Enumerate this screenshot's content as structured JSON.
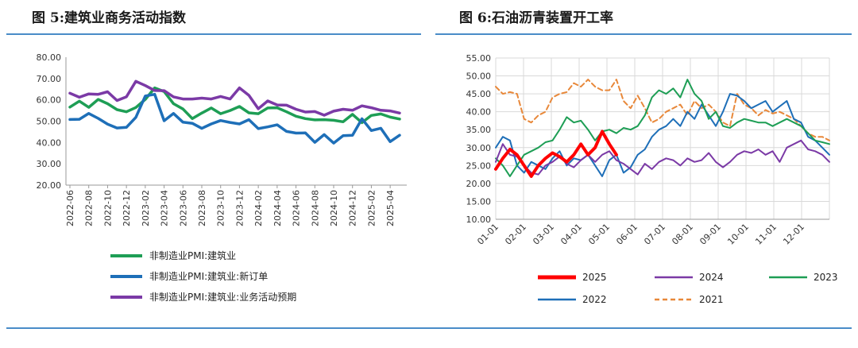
{
  "left_title": "图 5:建筑业商务活动指数",
  "right_title": "图 6:石油沥青装置开工率",
  "chart_data": [
    {
      "type": "line",
      "ylim": [
        20,
        80
      ],
      "yticks": [
        "20.00",
        "30.00",
        "40.00",
        "50.00",
        "60.00",
        "70.00",
        "80.00"
      ],
      "xticks": [
        "2022-06",
        "2022-08",
        "2022-10",
        "2022-12",
        "2023-02",
        "2023-04",
        "2023-06",
        "2023-08",
        "2023-10",
        "2023-12",
        "2024-02",
        "2024-04",
        "2024-06",
        "2024-08",
        "2024-10",
        "2024-12",
        "2025-02",
        "2025-04"
      ],
      "x": [
        "2022-06",
        "2022-07",
        "2022-08",
        "2022-09",
        "2022-10",
        "2022-11",
        "2022-12",
        "2023-01",
        "2023-02",
        "2023-03",
        "2023-04",
        "2023-05",
        "2023-06",
        "2023-07",
        "2023-08",
        "2023-09",
        "2023-10",
        "2023-11",
        "2023-12",
        "2024-01",
        "2024-02",
        "2024-03",
        "2024-04",
        "2024-05",
        "2024-06",
        "2024-07",
        "2024-08",
        "2024-09",
        "2024-10",
        "2024-11",
        "2024-12",
        "2025-01",
        "2025-02",
        "2025-03",
        "2025-04",
        "2025-05"
      ],
      "series": [
        {
          "name": "非制造业PMI:建筑业",
          "color": "#1e9e55",
          "values": [
            56.6,
            59.4,
            56.5,
            60.2,
            58.2,
            55.4,
            54.4,
            56.4,
            60.2,
            65.6,
            63.9,
            58.2,
            55.7,
            51.2,
            53.8,
            56.2,
            53.5,
            55.0,
            56.9,
            53.9,
            53.5,
            56.2,
            56.3,
            54.4,
            52.3,
            51.2,
            50.6,
            50.7,
            50.4,
            49.7,
            53.2,
            49.3,
            52.7,
            53.4,
            51.9,
            51.0
          ]
        },
        {
          "name": "非制造业PMI:建筑业:新订单",
          "color": "#1e6fb8",
          "values": [
            50.8,
            50.9,
            53.6,
            51.3,
            48.6,
            46.8,
            47.1,
            51.8,
            61.8,
            62.6,
            50.2,
            53.6,
            49.5,
            49.0,
            46.6,
            48.7,
            50.3,
            49.4,
            48.7,
            50.7,
            46.5,
            47.3,
            48.3,
            45.2,
            44.4,
            44.5,
            40.1,
            43.7,
            39.7,
            43.2,
            43.4,
            51.1,
            45.6,
            46.7,
            40.4,
            43.4
          ]
        },
        {
          "name": "非制造业PMI:建筑业:业务活动预期",
          "color": "#7b3aa6",
          "values": [
            63.1,
            61.2,
            62.8,
            62.6,
            63.8,
            59.7,
            61.4,
            68.7,
            66.7,
            64.4,
            64.3,
            61.4,
            60.4,
            60.4,
            60.8,
            60.4,
            61.6,
            60.4,
            65.6,
            62.1,
            55.8,
            59.5,
            57.6,
            57.5,
            55.6,
            54.3,
            54.5,
            52.8,
            54.7,
            55.6,
            55.1,
            57.2,
            56.3,
            55.1,
            54.8,
            53.8
          ]
        }
      ]
    },
    {
      "type": "line",
      "ylim": [
        10,
        55
      ],
      "yticks": [
        "10.00",
        "15.00",
        "20.00",
        "25.00",
        "30.00",
        "35.00",
        "40.00",
        "45.00",
        "50.00",
        "55.00"
      ],
      "xticks": [
        "01-01",
        "02-01",
        "03-01",
        "04-01",
        "05-01",
        "06-01",
        "07-01",
        "08-01",
        "09-01",
        "10-01",
        "11-01",
        "12-01"
      ],
      "series": [
        {
          "name": "2025",
          "color": "#ff0000",
          "width": 4,
          "dash": "",
          "values": [
            24.0,
            27.0,
            29.5,
            28.0,
            25.0,
            22.0,
            25.0,
            27.0,
            28.5,
            27.5,
            26.0,
            28.0,
            31.0,
            28.0,
            30.0,
            34.5,
            31.0,
            28.0
          ]
        },
        {
          "name": "2024",
          "color": "#7b3aa6",
          "width": 2,
          "dash": "",
          "values": [
            26.0,
            31.0,
            28.0,
            27.5,
            25.0,
            23.0,
            22.5,
            25.0,
            26.0,
            27.5,
            25.5,
            24.5,
            26.5,
            28.0,
            26.0,
            28.0,
            29.0,
            26.5,
            25.5,
            24.0,
            22.5,
            25.5,
            24.0,
            26.0,
            27.0,
            26.5,
            25.0,
            27.0,
            26.0,
            26.5,
            28.5,
            26.0,
            24.5,
            26.0,
            28.0,
            29.0,
            28.5,
            29.5,
            28.0,
            29.0,
            26.0,
            30.0,
            31.0,
            32.0,
            29.5,
            29.0,
            28.0,
            26.0
          ]
        },
        {
          "name": "2023",
          "color": "#1e9e55",
          "width": 2,
          "dash": "",
          "values": [
            27.0,
            25.0,
            22.0,
            25.0,
            28.0,
            29.0,
            30.0,
            31.5,
            32.0,
            35.0,
            38.5,
            37.0,
            37.5,
            35.0,
            32.0,
            34.5,
            35.0,
            34.0,
            35.5,
            35.0,
            36.0,
            39.0,
            44.0,
            46.0,
            45.0,
            46.5,
            44.0,
            49.0,
            45.0,
            43.0,
            38.0,
            40.0,
            36.0,
            35.5,
            37.0,
            38.0,
            37.5,
            37.0,
            37.0,
            36.0,
            37.0,
            38.0,
            37.0,
            36.0,
            34.0,
            32.0,
            31.5,
            31.0
          ]
        },
        {
          "name": "2022",
          "color": "#1e6fb8",
          "width": 2,
          "dash": "",
          "values": [
            30.0,
            33.0,
            32.0,
            25.0,
            23.0,
            26.0,
            25.0,
            24.0,
            27.0,
            29.0,
            25.0,
            27.0,
            26.5,
            28.0,
            25.0,
            22.0,
            26.5,
            28.0,
            23.0,
            24.5,
            28.0,
            29.5,
            33.0,
            35.0,
            36.0,
            38.0,
            36.0,
            40.0,
            38.0,
            42.0,
            39.0,
            36.0,
            40.0,
            45.0,
            44.5,
            43.0,
            41.0,
            42.0,
            43.0,
            40.0,
            41.5,
            43.0,
            38.0,
            37.0,
            33.0,
            32.0,
            30.0,
            28.0
          ]
        },
        {
          "name": "2021",
          "color": "#e8883a",
          "width": 2,
          "dash": "6,4",
          "values": [
            47.0,
            45.0,
            45.5,
            45.0,
            38.0,
            37.0,
            39.0,
            40.0,
            44.0,
            45.0,
            45.5,
            48.0,
            47.0,
            49.0,
            47.0,
            46.0,
            46.0,
            49.0,
            43.0,
            41.0,
            44.5,
            41.0,
            37.0,
            38.0,
            40.0,
            41.0,
            42.0,
            39.0,
            43.0,
            41.0,
            42.0,
            40.0,
            37.0,
            36.0,
            45.0,
            42.0,
            41.0,
            39.0,
            40.5,
            39.5,
            40.0,
            39.0,
            38.0,
            36.0,
            34.0,
            33.0,
            33.0,
            32.0
          ]
        }
      ]
    }
  ]
}
